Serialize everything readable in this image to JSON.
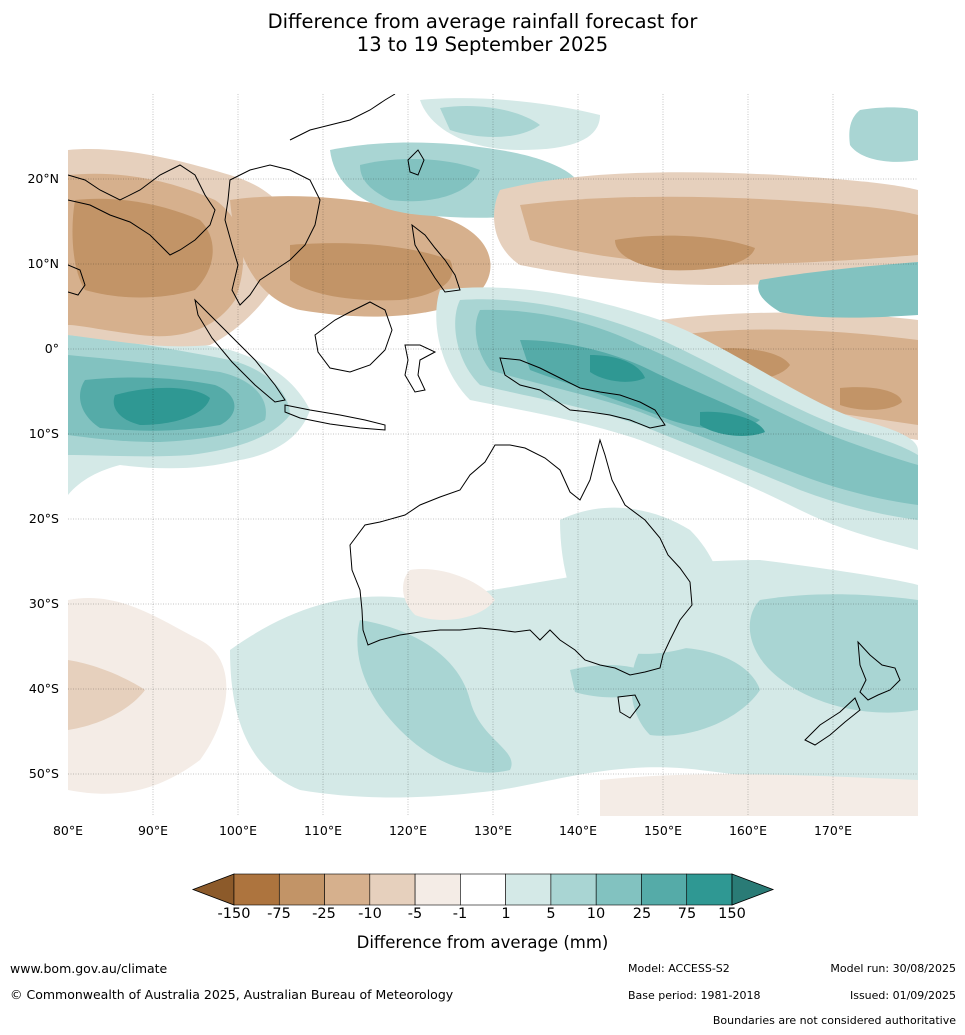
{
  "title": {
    "line1": "Difference from average rainfall forecast for",
    "line2": "13 to 19 September 2025"
  },
  "map": {
    "lat_labels": [
      "20°N",
      "10°N",
      "0°",
      "10°S",
      "20°S",
      "30°S",
      "40°S",
      "50°S"
    ],
    "lon_labels": [
      "80°E",
      "90°E",
      "100°E",
      "110°E",
      "120°E",
      "130°E",
      "140°E",
      "150°E",
      "160°E",
      "170°E"
    ],
    "extent": {
      "lon": [
        80,
        180
      ],
      "lat": [
        -55,
        30
      ]
    }
  },
  "colorbar": {
    "ticks": [
      "-150",
      "-75",
      "-25",
      "-10",
      "-5",
      "-1",
      "1",
      "5",
      "10",
      "25",
      "75",
      "150"
    ],
    "colors": [
      "#8c5a2a",
      "#ad743e",
      "#c29467",
      "#d6b08d",
      "#e6d0bd",
      "#f4ece6",
      "#ffffff",
      "#d4e9e7",
      "#a9d5d3",
      "#82c2c0",
      "#55aba8",
      "#2f9893",
      "#2a7b76"
    ],
    "label": "Difference from average (mm)"
  },
  "footer": {
    "website": "www.bom.gov.au/climate",
    "copyright": "© Commonwealth of Australia 2025, Australian Bureau of Meteorology",
    "model": "Model: ACCESS-S2",
    "base_period": "Base period: 1981-2018",
    "model_run": "Model run: 30/08/2025",
    "issued": "Issued: 01/09/2025",
    "boundaries": "Boundaries are not considered authoritative"
  }
}
